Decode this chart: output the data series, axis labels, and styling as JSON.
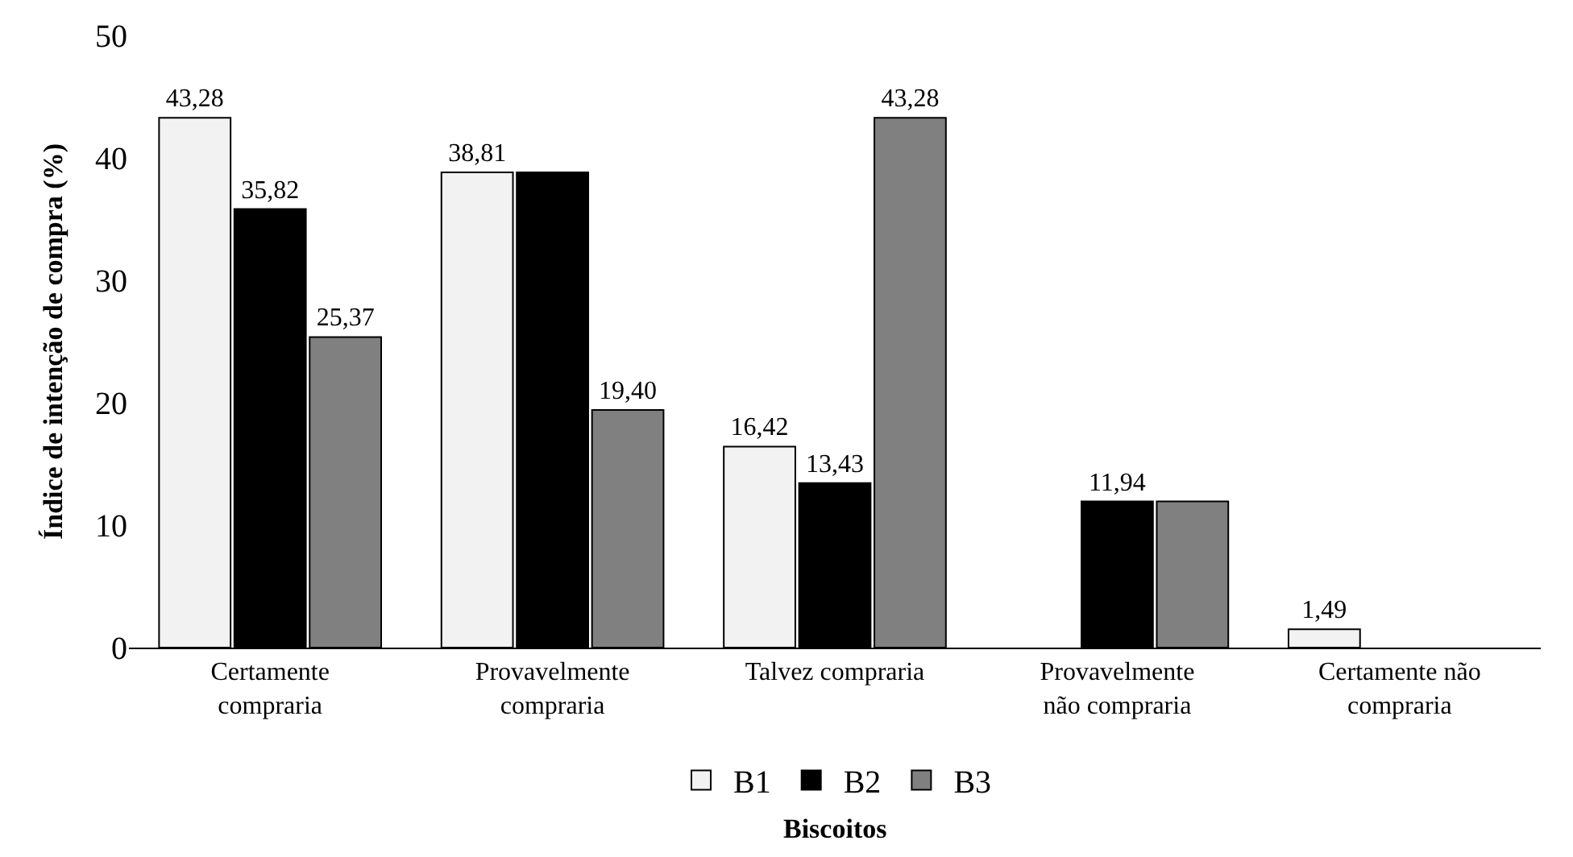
{
  "chart_data": {
    "type": "bar",
    "ylabel": "Índice de intenção de compra (%)",
    "xlabel": "Biscoitos",
    "categories": [
      "Certamente\ncompraria",
      "Provavelmente\ncompraria",
      "Talvez compraria",
      "Provavelmente\nnão compraria",
      "Certamente não\ncompraria"
    ],
    "series": [
      {
        "name": "B1",
        "color": "#f2f2f2",
        "values": [
          43.28,
          38.81,
          16.42,
          0,
          1.49
        ],
        "value_labels": [
          "43,28",
          "38,81",
          "16,42",
          null,
          "1,49"
        ]
      },
      {
        "name": "B2",
        "color": "#000000",
        "values": [
          35.82,
          38.81,
          13.43,
          11.94,
          0
        ],
        "value_labels": [
          "35,82",
          null,
          "13,43",
          "11,94",
          null
        ]
      },
      {
        "name": "B3",
        "color": "#808080",
        "values": [
          25.37,
          19.4,
          43.28,
          11.94,
          0
        ],
        "value_labels": [
          "25,37",
          "19,40",
          "43,28",
          null,
          null
        ]
      }
    ],
    "ylim": [
      0,
      50
    ],
    "yticks": [
      0,
      10,
      20,
      30,
      40,
      50
    ],
    "grid": false,
    "legend": "bottom"
  }
}
